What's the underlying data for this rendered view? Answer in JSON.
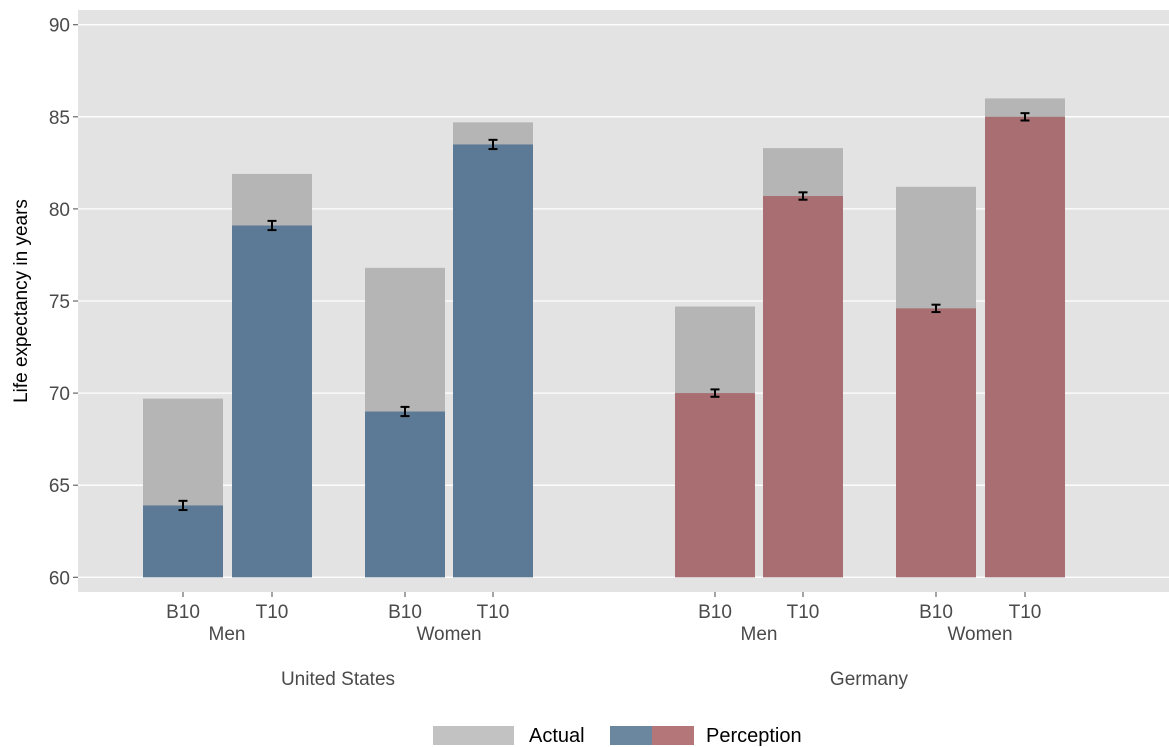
{
  "chart_data": {
    "type": "bar",
    "ylabel": "Life expectancy in years",
    "ylim": [
      59.2,
      90.8
    ],
    "yticks": [
      60,
      65,
      70,
      75,
      80,
      85,
      90
    ],
    "grid": true,
    "legend": {
      "position": "bottom",
      "entries": [
        {
          "label": "Actual",
          "colors": [
            "#c2c2c2"
          ]
        },
        {
          "label": "Perception",
          "colors": [
            "#6b87a0",
            "#b5767a"
          ]
        }
      ]
    },
    "colors": {
      "panel": "#e3e3e3",
      "actual": "#b5b5b5",
      "perception_us": "#5c7a95",
      "perception_de": "#a86e72",
      "grid": "#ffffff"
    },
    "countries": [
      {
        "name": "United States",
        "groups": [
          {
            "name": "Men",
            "bars": [
              {
                "label": "B10",
                "actual": 69.7,
                "perception": 63.9,
                "err": 0.25
              },
              {
                "label": "T10",
                "actual": 81.9,
                "perception": 79.1,
                "err": 0.25
              }
            ]
          },
          {
            "name": "Women",
            "bars": [
              {
                "label": "B10",
                "actual": 76.8,
                "perception": 69.0,
                "err": 0.25
              },
              {
                "label": "T10",
                "actual": 84.7,
                "perception": 83.5,
                "err": 0.25
              }
            ]
          }
        ]
      },
      {
        "name": "Germany",
        "groups": [
          {
            "name": "Men",
            "bars": [
              {
                "label": "B10",
                "actual": 74.7,
                "perception": 70.0,
                "err": 0.2
              },
              {
                "label": "T10",
                "actual": 83.3,
                "perception": 80.7,
                "err": 0.2
              }
            ]
          },
          {
            "name": "Women",
            "bars": [
              {
                "label": "B10",
                "actual": 81.2,
                "perception": 74.6,
                "err": 0.2
              },
              {
                "label": "T10",
                "actual": 86.0,
                "perception": 85.0,
                "err": 0.2
              }
            ]
          }
        ]
      }
    ]
  }
}
